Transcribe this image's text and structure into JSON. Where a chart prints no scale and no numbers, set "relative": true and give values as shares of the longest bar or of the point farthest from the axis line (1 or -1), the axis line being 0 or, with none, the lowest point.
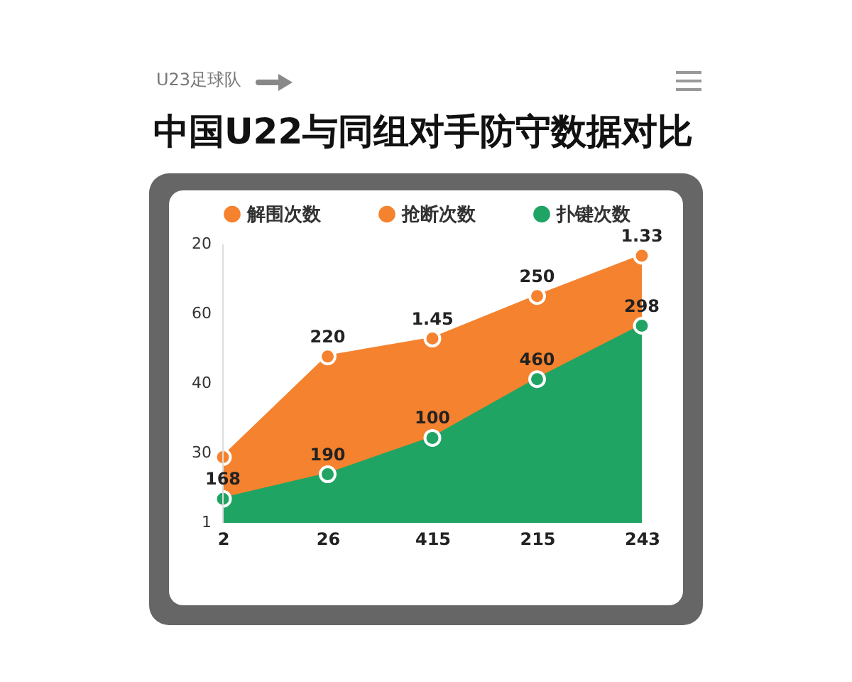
{
  "chart_data": {
    "type": "area",
    "title": "中国U22与同组对手防守数据对比",
    "subtitle": "U23足球队",
    "categories": [
      "2",
      "26",
      "415",
      "215",
      "243"
    ],
    "relative": true,
    "annotations": [
      "20",
      "60",
      "40",
      "30",
      "1",
      {
        "text": "220",
        "x": "26",
        "y": 0.623
      },
      {
        "text": "1.45",
        "x": "415",
        "y": 0.69
      },
      {
        "text": "250",
        "x": "215",
        "y": 0.849
      },
      {
        "text": "1.33",
        "x": "243",
        "y": 1
      },
      {
        "text": "168",
        "x": "2",
        "y": 0.09
      },
      {
        "text": "190",
        "x": "26",
        "y": 0.182
      },
      {
        "text": "100",
        "x": "415",
        "y": 0.318
      },
      {
        "text": "460",
        "x": "215",
        "y": 0.538
      },
      {
        "text": "298",
        "x": "243",
        "y": 0.738
      }
    ],
    "legend": "top",
    "marker": "circle",
    "series": [
      {
        "name": "解围次数",
        "color": "#f5822e",
        "values": [
          0.246,
          0.623,
          0.69,
          0.849,
          1
        ]
      },
      {
        "name": "抢断次数",
        "color": "#f5822e",
        "values": [
          null,
          null,
          null,
          null,
          null
        ]
      },
      {
        "name": "扑键次数",
        "color": "#1fa463",
        "values": [
          0.09,
          0.182,
          0.318,
          0.538,
          0.738
        ]
      }
    ]
  }
}
